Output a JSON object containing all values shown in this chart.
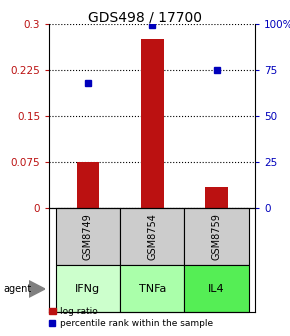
{
  "title": "GDS498 / 17700",
  "samples": [
    "GSM8749",
    "GSM8754",
    "GSM8759"
  ],
  "agents": [
    "IFNg",
    "TNFa",
    "IL4"
  ],
  "log_ratios": [
    0.075,
    0.275,
    0.035
  ],
  "percentile_ranks": [
    68,
    99,
    75
  ],
  "ylim_left": [
    0,
    0.3
  ],
  "ylim_right": [
    0,
    100
  ],
  "yticks_left": [
    0,
    0.075,
    0.15,
    0.225,
    0.3
  ],
  "ytick_labels_left": [
    "0",
    "0.075",
    "0.15",
    "0.225",
    "0.3"
  ],
  "yticks_right": [
    0,
    25,
    50,
    75,
    100
  ],
  "ytick_labels_right": [
    "0",
    "25",
    "50",
    "75",
    "100%"
  ],
  "bar_color": "#bb1111",
  "marker_color": "#0000bb",
  "agent_colors": [
    "#ccffcc",
    "#aaffaa",
    "#55ee55"
  ],
  "sample_bg_color": "#cccccc",
  "title_fontsize": 10,
  "tick_fontsize": 7.5,
  "legend_fontsize": 6.5
}
